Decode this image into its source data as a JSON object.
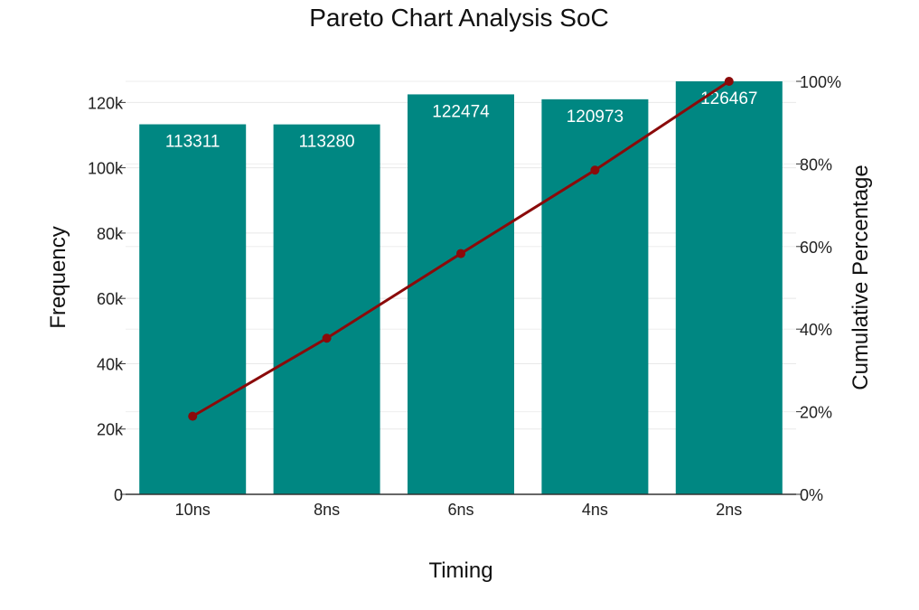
{
  "chart_data": {
    "type": "bar",
    "title": "Pareto Chart Analysis SoC",
    "xlabel": "Timing",
    "ylabel": "Frequency",
    "y2label": "Cumulative Percentage",
    "categories": [
      "10ns",
      "8ns",
      "6ns",
      "4ns",
      "2ns"
    ],
    "series": [
      {
        "name": "Frequency",
        "type": "bar",
        "values": [
          113311,
          113280,
          122474,
          120973,
          126467
        ],
        "data_labels": [
          "113311",
          "113280",
          "122474",
          "120973",
          "126467"
        ],
        "color": "#008782"
      },
      {
        "name": "Cumulative Percentage",
        "type": "line",
        "axis": "right",
        "values": [
          18.9,
          37.8,
          58.3,
          78.5,
          100.0
        ],
        "color": "#8b0a0a"
      }
    ],
    "ylim": [
      0,
      126467
    ],
    "y2lim": [
      0,
      100
    ],
    "y_ticks": [
      0,
      20000,
      40000,
      60000,
      80000,
      100000,
      120000
    ],
    "y_tick_labels": [
      "0",
      "20k",
      "40k",
      "60k",
      "80k",
      "100k",
      "120k"
    ],
    "y2_ticks": [
      0,
      20,
      40,
      60,
      80,
      100
    ],
    "y2_tick_labels": [
      "0%",
      "20%",
      "40%",
      "60%",
      "80%",
      "100%"
    ],
    "grid": true
  }
}
